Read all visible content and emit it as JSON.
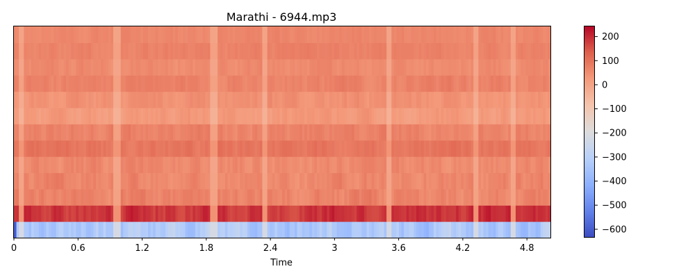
{
  "chart_data": {
    "type": "heatmap",
    "title": "Marathi - 6944.mp3",
    "xlabel": "Time",
    "ylabel": "",
    "xlim": [
      0,
      5.02
    ],
    "x_ticks": [
      "0",
      "0.6",
      "1.2",
      "1.8",
      "2.4",
      "3",
      "3.6",
      "4.2",
      "4.8"
    ],
    "x_tick_values": [
      0,
      0.6,
      1.2,
      1.8,
      2.4,
      3.0,
      3.6,
      4.2,
      4.8
    ],
    "rows": 13,
    "columns": 216,
    "colormap": "coolwarm",
    "color_range": [
      -635,
      245
    ],
    "colorbar_ticks": [
      "200",
      "100",
      "0",
      "−100",
      "−200",
      "−300",
      "−400",
      "−500",
      "−600"
    ],
    "colorbar_tick_values": [
      200,
      100,
      0,
      -100,
      -200,
      -300,
      -400,
      -500,
      -600
    ],
    "row_means_bottom_to_top": [
      -330,
      190,
      65,
      60,
      55,
      95,
      70,
      25,
      40,
      70,
      55,
      70,
      60
    ],
    "row_variation": [
      60,
      30,
      25,
      25,
      22,
      18,
      20,
      18,
      18,
      18,
      16,
      14,
      12
    ],
    "grid": false,
    "colors": {
      "cool_end": "#3b4cc0",
      "neutral": "#dddcdc",
      "warm_end": "#b40426"
    }
  }
}
